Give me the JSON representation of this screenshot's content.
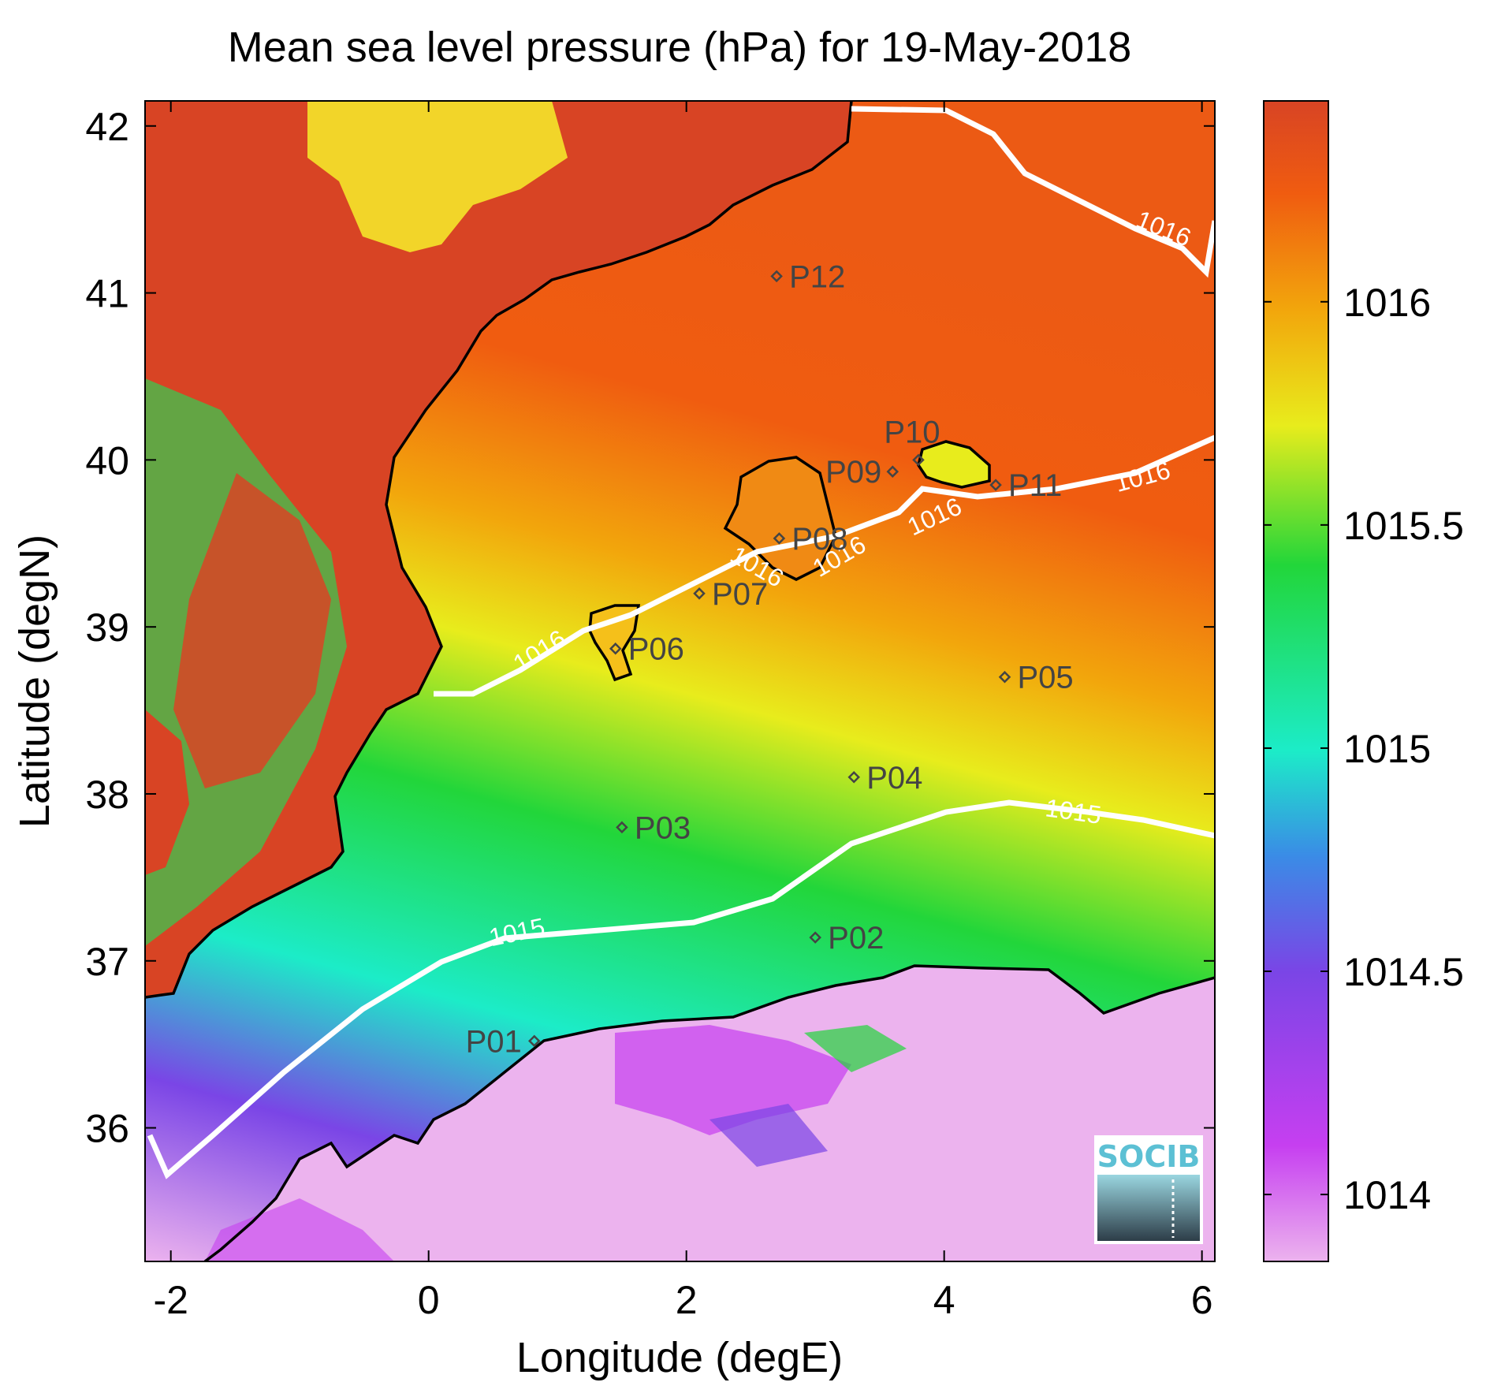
{
  "title": "Mean sea level pressure (hPa) for 19-May-2018",
  "xlabel": "Longitude (degE)",
  "ylabel": "Latitude (degN)",
  "logo_text": "SOCIB",
  "chart_data": {
    "type": "heatmap",
    "title": "Mean sea level pressure (hPa) for 19-May-2018",
    "xlabel": "Longitude (degE)",
    "ylabel": "Latitude (degN)",
    "xlim": [
      -2.2,
      6.1
    ],
    "ylim": [
      35.2,
      42.15
    ],
    "xticks": [
      -2,
      0,
      2,
      4,
      6
    ],
    "yticks": [
      36,
      37,
      38,
      39,
      40,
      41,
      42
    ],
    "xtick_labels": [
      "-2",
      "0",
      "2",
      "4",
      "6"
    ],
    "ytick_labels": [
      "36",
      "37",
      "38",
      "39",
      "40",
      "41",
      "42"
    ],
    "colorbar": {
      "range": [
        1013.85,
        1016.45
      ],
      "ticks": [
        1014,
        1014.5,
        1015,
        1015.5,
        1016
      ],
      "tick_labels": [
        "1014",
        "1014.5",
        "1015",
        "1015.5",
        "1016"
      ],
      "colors": [
        "#ecb3ee",
        "#c63ff0",
        "#7a45e6",
        "#3a8ce6",
        "#1cecc8",
        "#22d63a",
        "#e8ec1c",
        "#f2a60c",
        "#f05c10",
        "#d84424"
      ]
    },
    "contour_labels": [
      "1016",
      "1016",
      "1016",
      "1016",
      "1016",
      "1016",
      "1015",
      "1015"
    ],
    "stations": [
      {
        "name": "P01",
        "lon": 0.82,
        "lat": 36.52
      },
      {
        "name": "P02",
        "lon": 3.0,
        "lat": 37.14
      },
      {
        "name": "P03",
        "lon": 1.5,
        "lat": 37.8
      },
      {
        "name": "P04",
        "lon": 3.3,
        "lat": 38.1
      },
      {
        "name": "P05",
        "lon": 4.47,
        "lat": 38.7
      },
      {
        "name": "P06",
        "lon": 1.45,
        "lat": 38.87
      },
      {
        "name": "P07",
        "lon": 2.1,
        "lat": 39.2
      },
      {
        "name": "P08",
        "lon": 2.72,
        "lat": 39.53
      },
      {
        "name": "P09",
        "lon": 3.6,
        "lat": 39.93
      },
      {
        "name": "P10",
        "lon": 3.8,
        "lat": 40.0
      },
      {
        "name": "P11",
        "lon": 4.4,
        "lat": 39.85
      },
      {
        "name": "P12",
        "lon": 2.7,
        "lat": 41.1
      }
    ]
  }
}
